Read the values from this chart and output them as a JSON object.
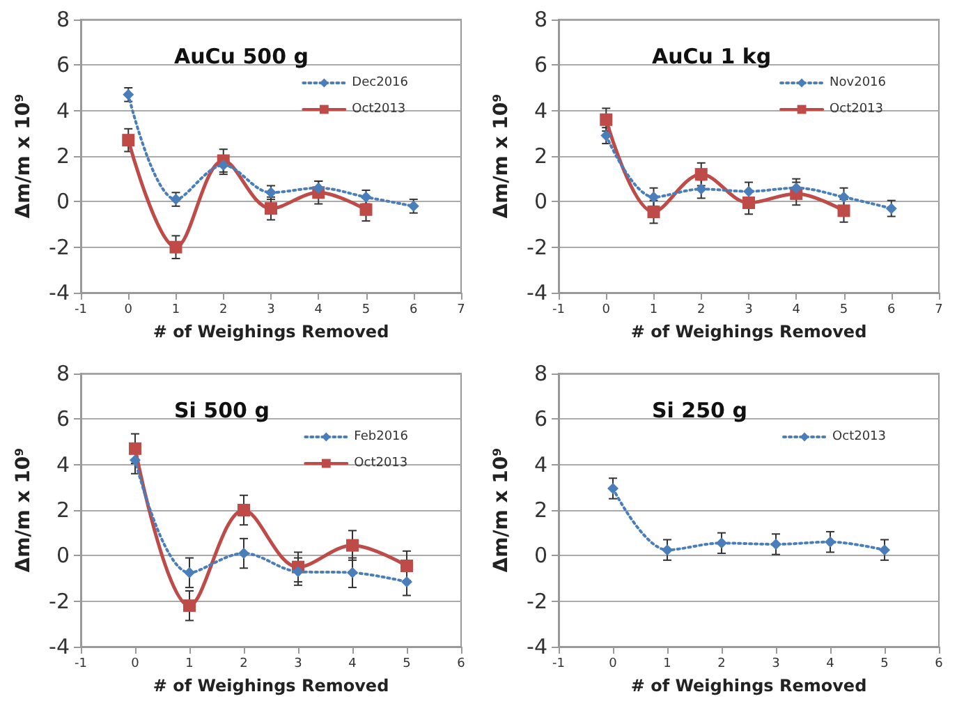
{
  "chart_data": [
    {
      "type": "line",
      "title": "AuCu 500 g",
      "xlabel": "# of Weighings Removed",
      "ylabel": "Δm/m x 10⁹",
      "xlim": [
        -1,
        7
      ],
      "xticks": [
        -1,
        0,
        1,
        2,
        3,
        4,
        5,
        6,
        7
      ],
      "ylim": [
        -4,
        8
      ],
      "yticks": [
        -4,
        -2,
        0,
        2,
        4,
        6,
        8
      ],
      "grid": "y",
      "legend": "top right",
      "series": [
        {
          "name": "Dec2016",
          "color": "#4a7ebb",
          "marker": "diamond",
          "line_style": "dotted",
          "x": [
            0,
            1,
            2,
            3,
            4,
            5,
            6
          ],
          "values": [
            4.7,
            0.1,
            1.6,
            0.4,
            0.6,
            0.2,
            -0.2
          ],
          "errors": [
            0.3,
            0.3,
            0.4,
            0.3,
            0.3,
            0.3,
            0.3
          ]
        },
        {
          "name": "Oct2013",
          "color": "#be4b48",
          "marker": "square",
          "line_style": "solid",
          "x": [
            0,
            1,
            2,
            3,
            4,
            5
          ],
          "values": [
            2.7,
            -2.0,
            1.8,
            -0.3,
            0.4,
            -0.35
          ],
          "errors": [
            0.5,
            0.5,
            0.5,
            0.5,
            0.5,
            0.5
          ]
        }
      ]
    },
    {
      "type": "line",
      "title": "AuCu 1 kg",
      "xlabel": "# of Weighings Removed",
      "ylabel": "Δm/m x 10⁹",
      "xlim": [
        -1,
        7
      ],
      "xticks": [
        -1,
        0,
        1,
        2,
        3,
        4,
        5,
        6,
        7
      ],
      "ylim": [
        -4,
        8
      ],
      "yticks": [
        -4,
        -2,
        0,
        2,
        4,
        6,
        8
      ],
      "grid": "y",
      "legend": "top right",
      "series": [
        {
          "name": "Nov2016",
          "color": "#4a7ebb",
          "marker": "diamond",
          "line_style": "dotted",
          "x": [
            0,
            1,
            2,
            3,
            4,
            5,
            6
          ],
          "values": [
            2.9,
            0.2,
            0.55,
            0.45,
            0.6,
            0.2,
            -0.3
          ],
          "errors": [
            0.35,
            0.4,
            0.4,
            0.4,
            0.4,
            0.4,
            0.35
          ]
        },
        {
          "name": "Oct2013",
          "color": "#be4b48",
          "marker": "square",
          "line_style": "solid",
          "x": [
            0,
            1,
            2,
            3,
            4,
            5
          ],
          "values": [
            3.6,
            -0.45,
            1.2,
            -0.05,
            0.35,
            -0.4
          ],
          "errors": [
            0.5,
            0.5,
            0.5,
            0.5,
            0.5,
            0.5
          ]
        }
      ]
    },
    {
      "type": "line",
      "title": "Si 500 g",
      "xlabel": "# of Weighings Removed",
      "ylabel": "Δm/m x 10⁹",
      "xlim": [
        -1,
        6
      ],
      "xticks": [
        -1,
        0,
        1,
        2,
        3,
        4,
        5,
        6
      ],
      "ylim": [
        -4,
        8
      ],
      "yticks": [
        -4,
        -2,
        0,
        2,
        4,
        6,
        8
      ],
      "grid": "y",
      "legend": "top right",
      "series": [
        {
          "name": "Feb2016",
          "color": "#4a7ebb",
          "marker": "diamond",
          "line_style": "dotted",
          "x": [
            0,
            1,
            2,
            3,
            4,
            5
          ],
          "values": [
            4.2,
            -0.75,
            0.1,
            -0.7,
            -0.75,
            -1.15
          ],
          "errors": [
            0.6,
            0.65,
            0.65,
            0.6,
            0.65,
            0.6
          ]
        },
        {
          "name": "Oct2013",
          "color": "#be4b48",
          "marker": "square",
          "line_style": "solid",
          "x": [
            0,
            1,
            2,
            3,
            4,
            5
          ],
          "values": [
            4.7,
            -2.2,
            2.0,
            -0.5,
            0.45,
            -0.45
          ],
          "errors": [
            0.65,
            0.65,
            0.65,
            0.65,
            0.65,
            0.65
          ]
        }
      ]
    },
    {
      "type": "line",
      "title": "Si 250 g",
      "xlabel": "# of Weighings Removed",
      "ylabel": "Δm/m x 10⁹",
      "xlim": [
        -1,
        6
      ],
      "xticks": [
        -1,
        0,
        1,
        2,
        3,
        4,
        5,
        6
      ],
      "ylim": [
        -4,
        8
      ],
      "yticks": [
        -4,
        -2,
        0,
        2,
        4,
        6,
        8
      ],
      "grid": "y",
      "legend": "top right",
      "series": [
        {
          "name": "Oct2013",
          "color": "#4a7ebb",
          "marker": "diamond",
          "line_style": "dotted",
          "x": [
            0,
            1,
            2,
            3,
            4,
            5
          ],
          "values": [
            2.95,
            0.25,
            0.55,
            0.5,
            0.6,
            0.25
          ],
          "errors": [
            0.45,
            0.45,
            0.45,
            0.45,
            0.45,
            0.45
          ]
        }
      ]
    }
  ]
}
